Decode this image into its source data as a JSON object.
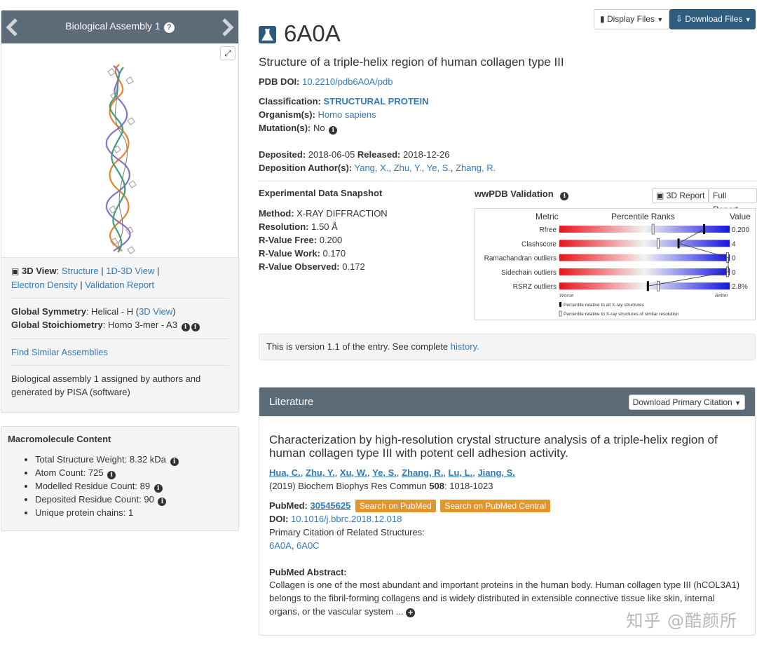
{
  "assembly": {
    "title": "Biological Assembly 1",
    "help": "?",
    "expand": "⤢",
    "view_label": "3D View",
    "view_colon": ":",
    "links_row1": [
      "Structure",
      "1D-3D View"
    ],
    "links_row2": [
      "Electron Density",
      "Validation Report"
    ],
    "sep_pipe": "|",
    "symmetry_label": "Global Symmetry",
    "symmetry_value": ": Helical - H  (",
    "symmetry_link": "3D View",
    "symmetry_close": ")",
    "stoich_label": "Global Stoichiometry",
    "stoich_value": ": Homo 3-mer - A3",
    "find_similar": "Find Similar Assemblies",
    "note": "Biological assembly 1 assigned by authors and generated by PISA (software)"
  },
  "macromolecule": {
    "heading": "Macromolecule Content",
    "items": [
      {
        "text": "Total Structure Weight: 8.32 kDa",
        "info": true
      },
      {
        "text": "Atom Count: 725",
        "info": true
      },
      {
        "text": "Modelled Residue Count: 89",
        "info": true
      },
      {
        "text": "Deposited Residue Count: 90",
        "info": true
      },
      {
        "text": "Unique protein chains: 1",
        "info": false
      }
    ]
  },
  "toolbar": {
    "display_files": "Display Files",
    "download_files": "Download Files"
  },
  "entry": {
    "id": "6A0A",
    "title": "Structure of a triple-helix region of human collagen type III",
    "doi_label": "PDB DOI:",
    "doi": "10.2210/pdb6A0A/pdb",
    "classification_label": "Classification:",
    "classification": "STRUCTURAL PROTEIN",
    "organism_label": "Organism(s):",
    "organism": "Homo sapiens",
    "mutation_label": "Mutation(s):",
    "mutation": "No",
    "deposited_label": "Deposited:",
    "deposited": "2018-06-05",
    "released_label": "Released:",
    "released": "2018-12-26",
    "authors_label": "Deposition Author(s):",
    "authors": [
      "Yang, X.",
      "Zhu, Y.",
      "Ye, S.",
      "Zhang, R."
    ]
  },
  "experimental": {
    "heading": "Experimental Data Snapshot",
    "rows": [
      {
        "label": "Method:",
        "value": "X-RAY DIFFRACTION"
      },
      {
        "label": "Resolution:",
        "value": "1.50 Å"
      },
      {
        "label": "R-Value Free:",
        "value": "0.200"
      },
      {
        "label": "R-Value Work:",
        "value": "0.170"
      },
      {
        "label": "R-Value Observed:",
        "value": "0.172"
      }
    ]
  },
  "validation": {
    "heading": "wwPDB Validation",
    "btn_3d": "3D Report",
    "btn_full": "Full Report",
    "col_metric": "Metric",
    "col_percentile": "Percentile Ranks",
    "col_value": "Value",
    "worse": "Worse",
    "better": "Better",
    "legend_all": "Percentile relative to all X-ray structures",
    "legend_similar": "Percentile relative to X-ray structures of similar resolution",
    "metrics": [
      {
        "name": "Rfree",
        "value": "0.200",
        "all": 0.85,
        "similar": 0.55
      },
      {
        "name": "Clashscore",
        "value": "4",
        "all": 0.7,
        "similar": 0.58
      },
      {
        "name": "Ramachandran outliers",
        "value": "0",
        "all": 1.0,
        "similar": 1.0
      },
      {
        "name": "Sidechain outliers",
        "value": "0",
        "all": 1.0,
        "similar": 1.0
      },
      {
        "name": "RSRZ outliers",
        "value": "2.8%",
        "all": 0.52,
        "similar": 0.58
      }
    ]
  },
  "version": {
    "text": "This is version 1.1 of the entry. See complete ",
    "link": "history."
  },
  "literature": {
    "heading": "Literature",
    "download_citation": "Download Primary Citation",
    "paper_title": "Characterization by high-resolution crystal structure analysis of a triple-helix region of human collagen type III with potent cell adhesion activity.",
    "authors": [
      "Hua, C.",
      "Zhu, Y.",
      "Xu, W.",
      "Ye, S.",
      "Zhang, R.",
      "Lu, L.",
      "Jiang, S."
    ],
    "journal_pre": "(2019) Biochem Biophys Res Commun ",
    "volume": "508",
    "pages": ": 1018-1023",
    "pubmed_label": "PubMed:",
    "pubmed_id": "30545625",
    "search_pubmed": "Search on PubMed",
    "search_pmc": "Search on PubMed Central",
    "doi_label": "DOI:",
    "doi": "10.1016/j.bbrc.2018.12.018",
    "related_label": "Primary Citation of Related Structures:",
    "related": [
      "6A0A",
      "6A0C"
    ],
    "abstract_label": "PubMed Abstract:",
    "abstract": "Collagen is one of the most abundant and important proteins in the human body. Human collagen type III (hCOL3A1) belongs to the fibril-forming collagens and is widely distributed in extensible connective tissue like skin, internal organs, or the vascular system ..."
  },
  "watermark": "知乎 @酷颜所",
  "colors": {
    "header": "#5d6a78",
    "link": "#337ab7",
    "brand": "#2b5a7e",
    "orange": "#e0962f"
  }
}
